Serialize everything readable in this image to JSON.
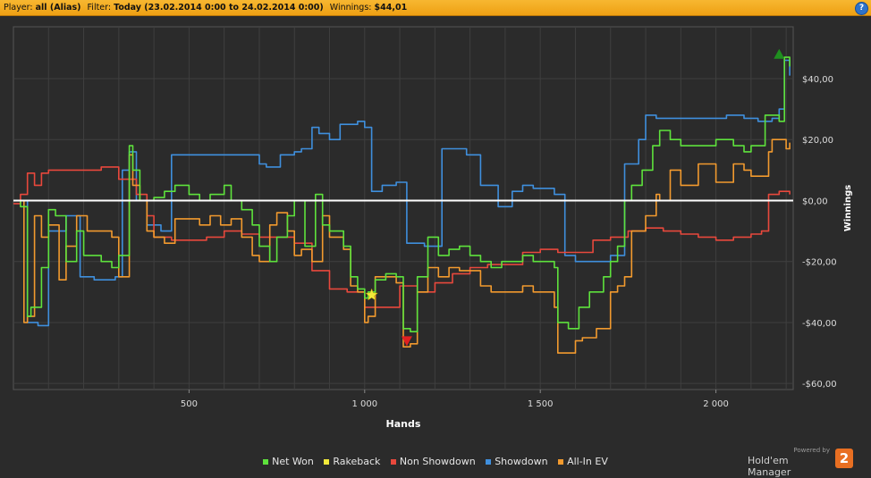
{
  "header": {
    "player_label": "Player:",
    "player_value": "all (Alias)",
    "filter_label": "Filter:",
    "filter_value": "Today (23.02.2014 0:00 to 24.02.2014 0:00)",
    "winnings_label": "Winnings:",
    "winnings_value": "$44,01",
    "help_icon": "?"
  },
  "legend": {
    "items": [
      {
        "label": "Net Won",
        "color": "#5ee23c"
      },
      {
        "label": "Rakeback",
        "color": "#f2e93a"
      },
      {
        "label": "Non Showdown",
        "color": "#e8483c"
      },
      {
        "label": "Showdown",
        "color": "#3f8fdd"
      },
      {
        "label": "All-In EV",
        "color": "#f29a2e"
      }
    ]
  },
  "brand": {
    "powered": "Powered by",
    "name": "Hold'em Manager",
    "logo": "2"
  },
  "chart_data": {
    "type": "line",
    "xlabel": "Hands",
    "ylabel": "Winnings",
    "xlim": [
      0,
      2220
    ],
    "ylim": [
      -62,
      57
    ],
    "xticks": [
      500,
      1000,
      1500,
      2000
    ],
    "xtick_labels": [
      "500",
      "1 000",
      "1 500",
      "2 000"
    ],
    "yticks": [
      40,
      20,
      0,
      -20,
      -40,
      -60
    ],
    "ytick_labels": [
      "$40,00",
      "$20,00",
      "$0,00",
      "-$20,00",
      "-$40,00",
      "-$60,00"
    ],
    "grid": true,
    "legend_position": "bottom",
    "zero_line": true,
    "series": [
      {
        "name": "Showdown",
        "color": "#3f8fdd",
        "x": [
          0,
          40,
          60,
          70,
          100,
          150,
          190,
          230,
          290,
          310,
          330,
          350,
          380,
          420,
          450,
          490,
          540,
          600,
          650,
          700,
          720,
          760,
          800,
          820,
          850,
          870,
          900,
          930,
          950,
          980,
          1000,
          1020,
          1050,
          1090,
          1120,
          1140,
          1170,
          1200,
          1220,
          1260,
          1290,
          1330,
          1360,
          1380,
          1420,
          1450,
          1480,
          1510,
          1540,
          1570,
          1600,
          1650,
          1700,
          1740,
          1780,
          1800,
          1830,
          1850,
          1880,
          1900,
          1950,
          2000,
          2030,
          2080,
          2120,
          2140,
          2160,
          2180,
          2195,
          2210
        ],
        "y": [
          0,
          -40,
          -40,
          -41,
          -10,
          -5,
          -25,
          -26,
          -25,
          10,
          16,
          0,
          -8,
          -10,
          15,
          15,
          15,
          15,
          15,
          12,
          11,
          15,
          16,
          17,
          24,
          22,
          20,
          25,
          25,
          26,
          24,
          3,
          5,
          6,
          -14,
          -14,
          -15,
          -15,
          17,
          17,
          15,
          5,
          5,
          -2,
          3,
          5,
          4,
          4,
          2,
          -18,
          -20,
          -20,
          -18,
          12,
          20,
          28,
          27,
          27,
          27,
          27,
          27,
          27,
          28,
          27,
          26,
          26,
          27,
          30,
          46,
          41
        ]
      },
      {
        "name": "Non Showdown",
        "color": "#e8483c",
        "x": [
          0,
          20,
          40,
          60,
          80,
          100,
          150,
          200,
          250,
          300,
          350,
          380,
          400,
          450,
          500,
          550,
          600,
          650,
          700,
          750,
          800,
          850,
          900,
          950,
          1000,
          1050,
          1100,
          1150,
          1200,
          1250,
          1300,
          1350,
          1400,
          1450,
          1500,
          1550,
          1600,
          1650,
          1700,
          1750,
          1800,
          1850,
          1900,
          1950,
          2000,
          2050,
          2100,
          2130,
          2150,
          2180,
          2210
        ],
        "y": [
          -1,
          2,
          9,
          5,
          9,
          10,
          10,
          10,
          11,
          7,
          2,
          -5,
          -12,
          -13,
          -13,
          -12,
          -10,
          -11,
          -12,
          -12,
          -14,
          -23,
          -29,
          -30,
          -35,
          -35,
          -28,
          -30,
          -27,
          -24,
          -22,
          -21,
          -21,
          -17,
          -16,
          -17,
          -17,
          -13,
          -12,
          -10,
          -9,
          -10,
          -11,
          -12,
          -13,
          -12,
          -11,
          -10,
          2,
          3,
          2
        ]
      },
      {
        "name": "All-In EV",
        "color": "#f29a2e",
        "x": [
          0,
          30,
          40,
          60,
          80,
          100,
          130,
          150,
          180,
          210,
          250,
          280,
          300,
          330,
          340,
          360,
          380,
          400,
          430,
          460,
          500,
          530,
          560,
          590,
          620,
          650,
          680,
          700,
          730,
          750,
          780,
          800,
          820,
          850,
          880,
          900,
          940,
          960,
          980,
          1000,
          1010,
          1030,
          1060,
          1090,
          1110,
          1130,
          1150,
          1180,
          1210,
          1240,
          1270,
          1300,
          1330,
          1360,
          1390,
          1420,
          1450,
          1480,
          1510,
          1540,
          1550,
          1580,
          1600,
          1620,
          1660,
          1700,
          1720,
          1740,
          1760,
          1800,
          1830,
          1840,
          1870,
          1900,
          1950,
          2000,
          2050,
          2080,
          2100,
          2150,
          2160,
          2200,
          2210
        ],
        "y": [
          0,
          -40,
          -38,
          -5,
          -12,
          -8,
          -26,
          -15,
          -5,
          -10,
          -10,
          -12,
          -25,
          15,
          5,
          0,
          -10,
          -12,
          -14,
          -6,
          -6,
          -8,
          -5,
          -8,
          -6,
          -12,
          -18,
          -20,
          -8,
          -4,
          -10,
          -18,
          -16,
          -20,
          -5,
          -12,
          -16,
          -28,
          -30,
          -40,
          -38,
          -25,
          -25,
          -27,
          -48,
          -47,
          -30,
          -22,
          -25,
          -22,
          -23,
          -23,
          -28,
          -30,
          -30,
          -30,
          -28,
          -30,
          -30,
          -35,
          -50,
          -50,
          -46,
          -45,
          -42,
          -30,
          -28,
          -25,
          -10,
          -5,
          2,
          0,
          10,
          5,
          12,
          6,
          12,
          10,
          8,
          16,
          20,
          17,
          19
        ]
      },
      {
        "name": "Net Won",
        "color": "#5ee23c",
        "x": [
          0,
          20,
          40,
          50,
          80,
          100,
          120,
          150,
          180,
          200,
          250,
          280,
          300,
          330,
          340,
          360,
          380,
          400,
          430,
          460,
          500,
          530,
          560,
          600,
          620,
          650,
          680,
          700,
          730,
          750,
          780,
          800,
          830,
          860,
          880,
          900,
          940,
          960,
          980,
          1000,
          1010,
          1030,
          1060,
          1090,
          1110,
          1130,
          1150,
          1180,
          1210,
          1240,
          1270,
          1300,
          1330,
          1360,
          1390,
          1420,
          1450,
          1480,
          1510,
          1540,
          1550,
          1580,
          1610,
          1640,
          1680,
          1700,
          1720,
          1740,
          1760,
          1790,
          1820,
          1840,
          1870,
          1900,
          1950,
          2000,
          2050,
          2080,
          2100,
          2140,
          2160,
          2180,
          2195,
          2210
        ],
        "y": [
          0,
          -2,
          -38,
          -35,
          -22,
          -3,
          -5,
          -20,
          -10,
          -18,
          -20,
          -22,
          -18,
          18,
          10,
          0,
          0,
          1,
          3,
          5,
          2,
          0,
          2,
          5,
          0,
          -3,
          -8,
          -15,
          -20,
          -12,
          -5,
          0,
          -15,
          2,
          -8,
          -10,
          -15,
          -25,
          -29,
          -32,
          -30,
          -26,
          -24,
          -25,
          -42,
          -43,
          -25,
          -12,
          -18,
          -16,
          -15,
          -18,
          -20,
          -22,
          -20,
          -20,
          -18,
          -20,
          -20,
          -22,
          -40,
          -42,
          -35,
          -30,
          -25,
          -20,
          -15,
          0,
          5,
          10,
          18,
          23,
          20,
          18,
          18,
          20,
          18,
          16,
          18,
          28,
          28,
          26,
          47,
          44
        ]
      },
      {
        "name": "Rakeback",
        "color": "#f2e93a",
        "x": [
          1020
        ],
        "y": [
          -31
        ]
      }
    ],
    "markers": [
      {
        "type": "star",
        "x": 1020,
        "y": -31,
        "color": "#f2e93a"
      },
      {
        "type": "triangle-down",
        "x": 1120,
        "y": -46,
        "color": "#e02020"
      },
      {
        "type": "triangle-up",
        "x": 2180,
        "y": 48,
        "color": "#1f8f1f"
      }
    ]
  }
}
